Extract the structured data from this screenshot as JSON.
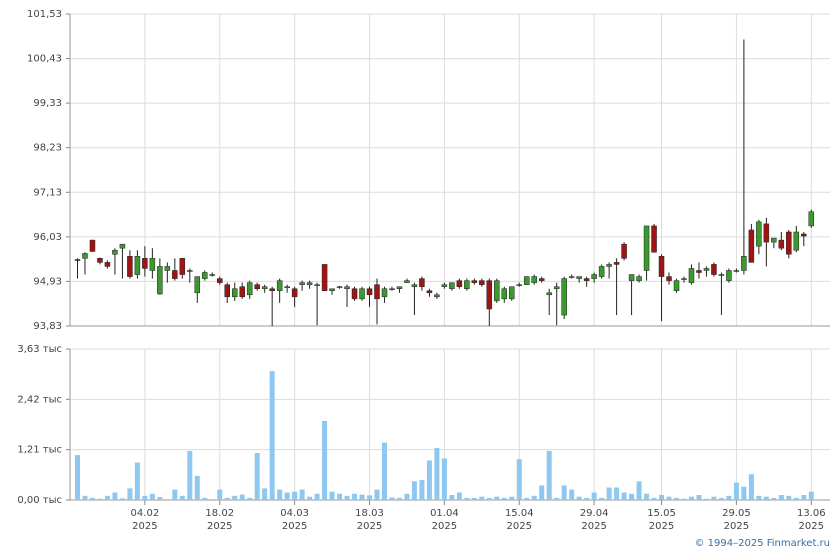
{
  "chart_data": [
    {
      "type": "candlestick",
      "x": [
        "2025-01-22",
        "2025-01-23",
        "2025-01-24",
        "2025-01-27",
        "2025-01-28",
        "2025-01-29",
        "2025-01-30",
        "2025-01-31",
        "2025-02-03",
        "2025-02-04",
        "2025-02-05",
        "2025-02-06",
        "2025-02-07",
        "2025-02-10",
        "2025-02-11",
        "2025-02-12",
        "2025-02-13",
        "2025-02-14",
        "2025-02-17",
        "2025-02-18",
        "2025-02-19",
        "2025-02-20",
        "2025-02-21",
        "2025-02-24",
        "2025-02-25",
        "2025-02-26",
        "2025-02-27",
        "2025-02-28",
        "2025-03-03",
        "2025-03-04",
        "2025-03-05",
        "2025-03-06",
        "2025-03-07",
        "2025-03-10",
        "2025-03-11",
        "2025-03-12",
        "2025-03-13",
        "2025-03-14",
        "2025-03-17",
        "2025-03-18",
        "2025-03-19",
        "2025-03-20",
        "2025-03-21",
        "2025-03-24",
        "2025-03-25",
        "2025-03-26",
        "2025-03-27",
        "2025-03-28",
        "2025-03-31",
        "2025-04-01",
        "2025-04-02",
        "2025-04-03",
        "2025-04-04",
        "2025-04-07",
        "2025-04-08",
        "2025-04-09",
        "2025-04-10",
        "2025-04-11",
        "2025-04-14",
        "2025-04-15",
        "2025-04-16",
        "2025-04-17",
        "2025-04-18",
        "2025-04-21",
        "2025-04-22",
        "2025-04-23",
        "2025-04-24",
        "2025-04-25",
        "2025-04-28",
        "2025-04-29",
        "2025-04-30",
        "2025-05-05",
        "2025-05-06",
        "2025-05-07",
        "2025-05-08",
        "2025-05-12",
        "2025-05-13",
        "2025-05-14",
        "2025-05-15",
        "2025-05-16",
        "2025-05-19",
        "2025-05-20",
        "2025-05-21",
        "2025-05-22",
        "2025-05-23",
        "2025-05-26",
        "2025-05-27",
        "2025-05-28",
        "2025-05-29",
        "2025-05-30",
        "2025-06-02",
        "2025-06-03",
        "2025-06-04",
        "2025-06-05",
        "2025-06-06",
        "2025-06-09",
        "2025-06-10",
        "2025-06-11",
        "2025-06-13"
      ],
      "open": [
        95.47,
        95.5,
        95.95,
        95.5,
        95.4,
        95.6,
        95.75,
        95.55,
        95.1,
        95.5,
        95.2,
        94.62,
        95.2,
        95.2,
        95.5,
        95.2,
        94.65,
        95.0,
        95.1,
        95.0,
        94.85,
        94.55,
        94.8,
        94.6,
        94.85,
        94.75,
        94.75,
        94.7,
        94.8,
        94.75,
        94.85,
        94.85,
        94.85,
        95.35,
        94.7,
        94.8,
        94.75,
        94.75,
        94.5,
        94.75,
        94.85,
        94.55,
        94.75,
        94.75,
        94.9,
        94.8,
        95.0,
        94.7,
        94.55,
        94.8,
        94.75,
        94.95,
        94.75,
        94.95,
        94.95,
        94.95,
        94.45,
        94.5,
        94.5,
        94.85,
        94.85,
        94.9,
        95.0,
        94.6,
        94.75,
        94.1,
        95.05,
        95.0,
        95.0,
        95.0,
        95.05,
        95.3,
        95.4,
        95.85,
        94.95,
        94.95,
        95.2,
        96.3,
        95.55,
        95.05,
        94.7,
        95.0,
        94.9,
        95.2,
        95.2,
        95.35,
        95.1,
        94.95,
        95.2,
        95.2,
        96.2,
        95.8,
        96.35,
        95.9,
        95.95,
        96.15,
        95.7,
        96.1,
        96.3
      ],
      "high": [
        95.5,
        95.65,
        95.96,
        95.52,
        95.45,
        95.75,
        95.85,
        95.7,
        95.7,
        95.8,
        95.75,
        95.5,
        95.4,
        95.5,
        95.5,
        95.25,
        95.05,
        95.2,
        95.15,
        95.05,
        94.9,
        94.9,
        94.9,
        94.95,
        94.9,
        94.85,
        94.8,
        95.0,
        94.85,
        94.8,
        94.95,
        94.95,
        94.9,
        95.35,
        94.75,
        94.82,
        94.85,
        94.8,
        94.8,
        94.8,
        95.0,
        94.8,
        94.8,
        94.8,
        95.0,
        94.9,
        95.05,
        94.75,
        94.65,
        94.9,
        94.9,
        95.0,
        95.0,
        95.0,
        95.0,
        95.0,
        95.0,
        94.8,
        94.8,
        94.9,
        95.05,
        95.1,
        95.05,
        94.75,
        94.9,
        95.05,
        95.1,
        95.05,
        95.05,
        95.15,
        95.35,
        95.4,
        95.5,
        95.9,
        95.1,
        95.1,
        96.3,
        96.35,
        95.6,
        95.15,
        95.0,
        95.05,
        95.35,
        95.4,
        95.3,
        95.4,
        95.15,
        95.25,
        95.25,
        100.9,
        96.35,
        96.45,
        96.5,
        96.0,
        96.15,
        96.2,
        96.3,
        96.15,
        96.7
      ],
      "low": [
        95.0,
        95.1,
        95.66,
        95.35,
        95.25,
        95.1,
        95.0,
        95.0,
        95.0,
        95.05,
        95.0,
        94.6,
        94.9,
        94.95,
        95.0,
        94.9,
        94.4,
        94.95,
        95.05,
        94.85,
        94.4,
        94.45,
        94.5,
        94.5,
        94.7,
        94.65,
        93.83,
        94.4,
        94.65,
        94.3,
        94.7,
        94.75,
        93.85,
        94.7,
        94.6,
        94.75,
        94.3,
        94.45,
        94.45,
        94.3,
        93.87,
        94.4,
        94.7,
        94.65,
        94.9,
        94.1,
        94.7,
        94.55,
        94.5,
        94.75,
        94.7,
        94.75,
        94.7,
        94.85,
        94.8,
        93.83,
        94.4,
        94.4,
        94.45,
        94.8,
        94.85,
        94.85,
        94.9,
        94.1,
        93.85,
        94.0,
        95.0,
        94.9,
        94.8,
        94.9,
        95.0,
        95.0,
        94.1,
        95.45,
        94.1,
        94.9,
        94.95,
        95.65,
        93.95,
        94.85,
        94.65,
        94.9,
        94.85,
        95.0,
        95.05,
        95.05,
        94.1,
        94.9,
        95.15,
        95.1,
        95.4,
        95.6,
        95.3,
        95.75,
        95.7,
        95.5,
        95.65,
        95.8,
        96.25
      ],
      "close": [
        95.45,
        95.62,
        95.67,
        95.4,
        95.3,
        95.7,
        95.85,
        95.05,
        95.55,
        95.25,
        95.5,
        95.3,
        95.3,
        95.0,
        95.1,
        95.2,
        95.05,
        95.15,
        95.1,
        94.9,
        94.55,
        94.75,
        94.55,
        94.9,
        94.75,
        94.8,
        94.7,
        94.95,
        94.8,
        94.55,
        94.9,
        94.9,
        94.85,
        94.7,
        94.75,
        94.8,
        94.8,
        94.5,
        94.75,
        94.6,
        94.5,
        94.75,
        94.75,
        94.8,
        94.95,
        94.85,
        94.8,
        94.65,
        94.6,
        94.85,
        94.9,
        94.8,
        94.95,
        94.9,
        94.85,
        94.25,
        94.95,
        94.75,
        94.8,
        94.85,
        95.05,
        95.05,
        94.95,
        94.65,
        94.8,
        95.0,
        95.05,
        95.05,
        94.95,
        95.1,
        95.3,
        95.35,
        95.35,
        95.5,
        95.1,
        95.05,
        96.3,
        95.65,
        95.05,
        94.95,
        94.95,
        95.0,
        95.25,
        95.15,
        95.25,
        95.1,
        95.1,
        95.2,
        95.2,
        95.55,
        95.4,
        96.4,
        95.9,
        96.0,
        95.75,
        95.6,
        96.15,
        96.05,
        96.65
      ],
      "up_color": "#3a9a2e",
      "down_color": "#a01414",
      "ylim": [
        93.83,
        101.53
      ],
      "yticks": [
        {
          "value": 93.83,
          "label": "93,83"
        },
        {
          "value": 94.93,
          "label": "94,93"
        },
        {
          "value": 96.03,
          "label": "96,03"
        },
        {
          "value": 97.13,
          "label": "97,13"
        },
        {
          "value": 98.23,
          "label": "98,23"
        },
        {
          "value": 99.33,
          "label": "99,33"
        },
        {
          "value": 100.43,
          "label": "100,43"
        },
        {
          "value": 101.53,
          "label": "101,53"
        }
      ],
      "xticks": [
        {
          "value": "2025-02-04",
          "label": "04.02\n2025"
        },
        {
          "value": "2025-02-18",
          "label": "18.02\n2025"
        },
        {
          "value": "2025-03-04",
          "label": "04.03\n2025"
        },
        {
          "value": "2025-03-18",
          "label": "18.03\n2025"
        },
        {
          "value": "2025-04-01",
          "label": "01.04\n2025"
        },
        {
          "value": "2025-04-15",
          "label": "15.04\n2025"
        },
        {
          "value": "2025-04-29",
          "label": "29.04\n2025"
        },
        {
          "value": "2025-05-15",
          "label": "15.05\n2025"
        },
        {
          "value": "2025-05-29",
          "label": "29.05\n2025"
        },
        {
          "value": "2025-06-13",
          "label": "13.06\n2025"
        }
      ],
      "grid": true
    },
    {
      "type": "bar",
      "values": [
        1.08,
        0.1,
        0.05,
        0.03,
        0.1,
        0.18,
        0.04,
        0.28,
        0.9,
        0.1,
        0.15,
        0.07,
        0.02,
        0.25,
        0.1,
        1.18,
        0.58,
        0.05,
        0.02,
        0.25,
        0.05,
        0.1,
        0.13,
        0.05,
        1.13,
        0.28,
        3.1,
        0.25,
        0.18,
        0.2,
        0.25,
        0.08,
        0.15,
        1.9,
        0.2,
        0.15,
        0.1,
        0.15,
        0.13,
        0.11,
        0.25,
        1.38,
        0.06,
        0.05,
        0.15,
        0.45,
        0.48,
        0.95,
        1.25,
        1.0,
        0.12,
        0.18,
        0.05,
        0.05,
        0.08,
        0.05,
        0.08,
        0.05,
        0.08,
        0.98,
        0.05,
        0.1,
        0.35,
        1.18,
        0.05,
        0.35,
        0.25,
        0.08,
        0.05,
        0.18,
        0.05,
        0.3,
        0.3,
        0.18,
        0.15,
        0.45,
        0.15,
        0.05,
        0.12,
        0.08,
        0.05,
        0.03,
        0.08,
        0.12,
        0.03,
        0.08,
        0.05,
        0.1,
        0.42,
        0.32,
        0.62,
        0.1,
        0.08,
        0.05,
        0.12,
        0.1,
        0.05,
        0.12,
        0.2
      ],
      "color": "#8ec8f0",
      "ylim": [
        0,
        3.63
      ],
      "yticks": [
        {
          "value": 0,
          "label": "0,00 тыс"
        },
        {
          "value": 1.21,
          "label": "1,21 тыс"
        },
        {
          "value": 2.42,
          "label": "2,42 тыс"
        },
        {
          "value": 3.63,
          "label": "3,63 тыс"
        }
      ],
      "grid": true
    }
  ],
  "footer": "© 1994–2025 Finmarket.ru"
}
